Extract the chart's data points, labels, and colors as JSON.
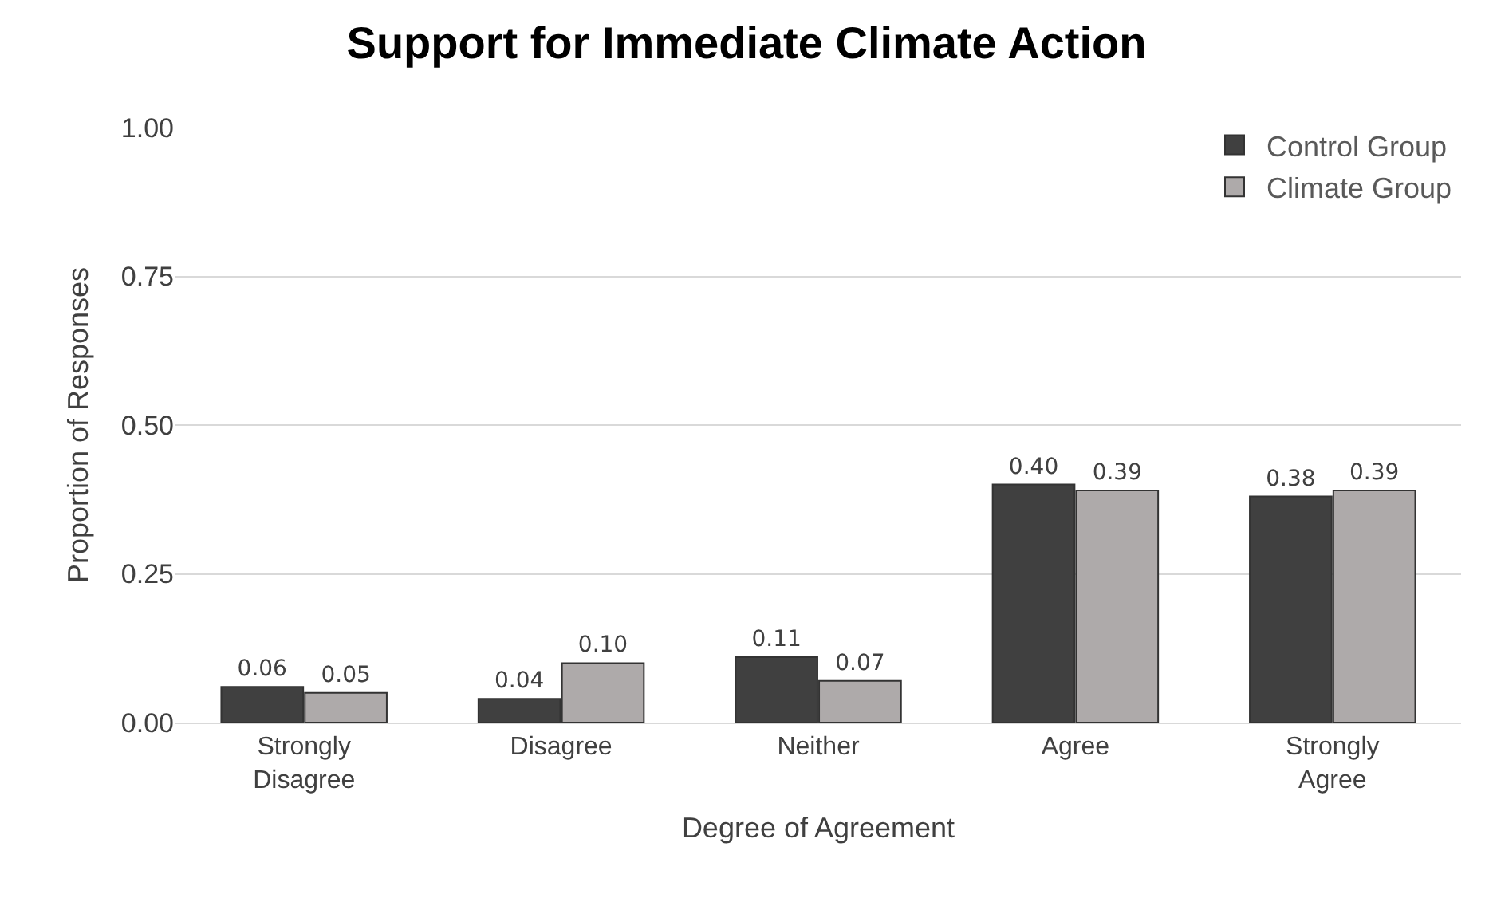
{
  "chart_data": {
    "type": "bar",
    "title": "Support for Immediate Climate Action",
    "xlabel": "Degree of Agreement",
    "ylabel": "Proportion of Responses",
    "categories": [
      "Strongly Disagree",
      "Disagree",
      "Neither",
      "Agree",
      "Strongly Agree"
    ],
    "series": [
      {
        "name": "Control Group",
        "color": "#404040",
        "values": [
          0.06,
          0.04,
          0.11,
          0.4,
          0.38
        ],
        "value_labels": [
          "0.06",
          "0.04",
          "0.11",
          "0.40",
          "0.38"
        ]
      },
      {
        "name": "Climate Group",
        "color": "#aeaaaa",
        "values": [
          0.05,
          0.1,
          0.07,
          0.39,
          0.39
        ],
        "value_labels": [
          "0.05",
          "0.10",
          "0.07",
          "0.39",
          "0.39"
        ]
      }
    ],
    "ylim": [
      0,
      1
    ],
    "yticks": [
      {
        "value": 0,
        "label": "0.00"
      },
      {
        "value": 0.25,
        "label": "0.25"
      },
      {
        "value": 0.5,
        "label": "0.50"
      },
      {
        "value": 0.75,
        "label": "0.75"
      },
      {
        "value": 1,
        "label": "1.00"
      }
    ],
    "grid": "y",
    "legend": "top right"
  }
}
